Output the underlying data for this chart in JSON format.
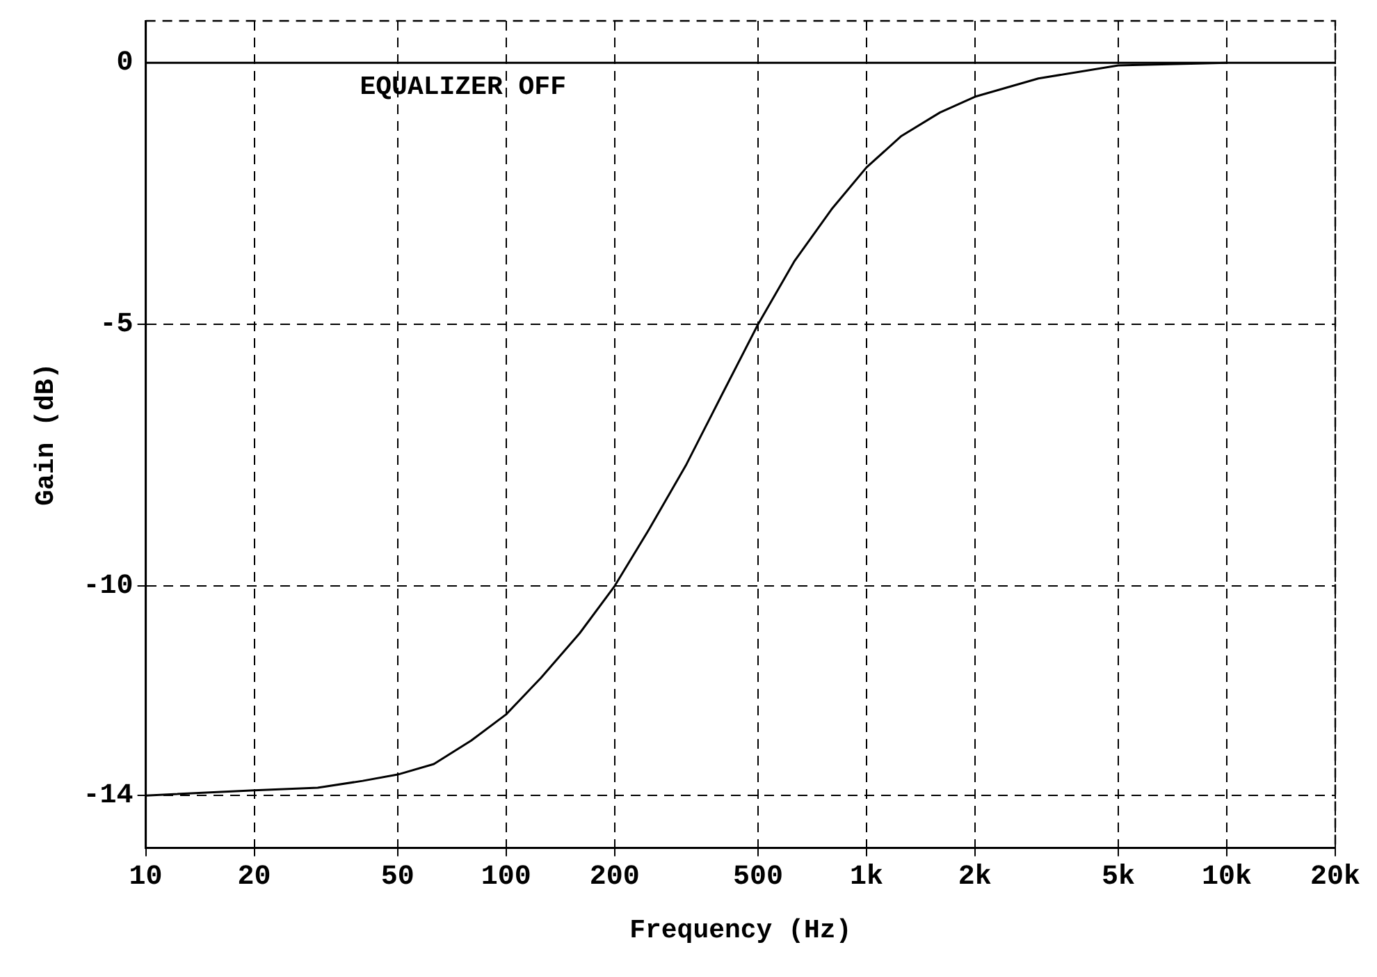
{
  "chart_data": {
    "type": "line",
    "xlabel": "Frequency (Hz)",
    "ylabel": "Gain (dB)",
    "log": "x",
    "xlim": [
      10,
      20000
    ],
    "ylim": [
      -15,
      0.8
    ],
    "xticks": [
      10,
      20,
      50,
      100,
      200,
      500,
      {
        "value": 1000,
        "label": "1k"
      },
      {
        "value": 2000,
        "label": "2k"
      },
      {
        "value": 5000,
        "label": "5k"
      },
      {
        "value": 10000,
        "label": "10k"
      },
      {
        "value": 20000,
        "label": "20k"
      }
    ],
    "yticks": [
      0,
      -5,
      -10,
      -14
    ],
    "grid": true,
    "legend": false,
    "marker": "none",
    "line_style": "solid",
    "series": [
      {
        "name": "EQUALIZER OFF",
        "color": "#000000",
        "x": [
          10,
          20000
        ],
        "values": [
          0,
          0
        ]
      },
      {
        "color": "#000000",
        "x": [
          10,
          20,
          30,
          40,
          50,
          63,
          80,
          100,
          125,
          160,
          200,
          250,
          315,
          400,
          500,
          630,
          800,
          1000,
          1250,
          1600,
          2000,
          3000,
          5000,
          10000
        ],
        "values": [
          -14,
          -13.9,
          -13.85,
          -13.72,
          -13.6,
          -13.4,
          -12.95,
          -12.45,
          -11.75,
          -10.9,
          -10,
          -8.9,
          -7.7,
          -6.3,
          -5,
          -3.8,
          -2.8,
          -2,
          -1.4,
          -0.95,
          -0.65,
          -0.3,
          -0.05,
          0
        ]
      }
    ]
  }
}
